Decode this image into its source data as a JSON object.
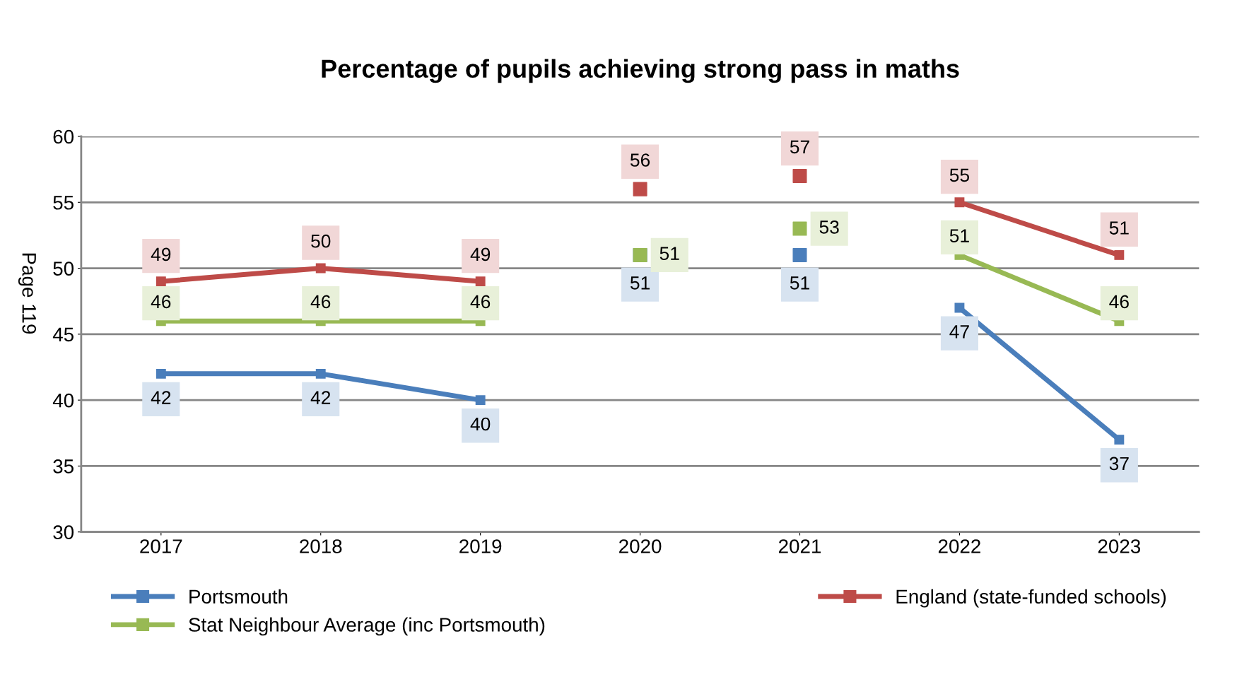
{
  "chart_data": {
    "type": "line",
    "title": "Percentage of pupils achieving strong pass in maths",
    "categories": [
      "2017",
      "2018",
      "2019",
      "2020",
      "2021",
      "2022",
      "2023"
    ],
    "series": [
      {
        "name": "Portsmouth",
        "color": "#4a7ebb",
        "values": [
          42,
          42,
          40,
          null,
          null,
          47,
          37
        ]
      },
      {
        "name": "England (state-funded schools)",
        "color": "#be4b48",
        "values": [
          49,
          50,
          49,
          null,
          null,
          55,
          51
        ]
      },
      {
        "name": "Stat Neighbour Average (inc Portsmouth)",
        "color": "#98b954",
        "values": [
          46,
          46,
          46,
          null,
          null,
          51,
          46
        ]
      },
      {
        "type": "scatter",
        "color": "#4a7ebb",
        "values": [
          null,
          null,
          null,
          51,
          51,
          null,
          null
        ]
      },
      {
        "type": "scatter",
        "color": "#be4b48",
        "values": [
          null,
          null,
          null,
          56,
          57,
          null,
          null
        ]
      },
      {
        "type": "scatter",
        "color": "#98b954",
        "values": [
          null,
          null,
          null,
          51,
          53,
          null,
          null
        ]
      }
    ],
    "ylim": [
      30,
      60
    ],
    "yticks": [
      30,
      35,
      40,
      45,
      50,
      55,
      60
    ],
    "grid": "y",
    "legend": "bottom",
    "marker": "square",
    "data_labels": true,
    "annotations": [
      "Page 119"
    ]
  }
}
